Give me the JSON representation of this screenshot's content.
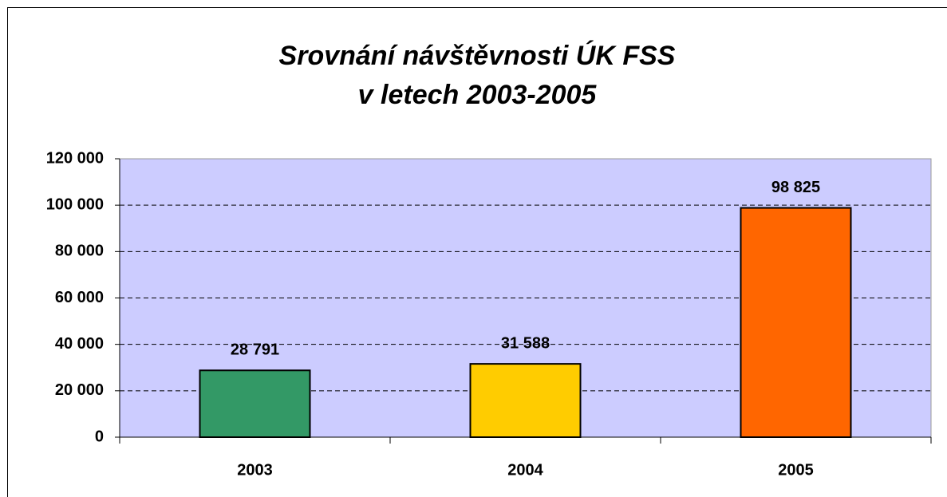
{
  "chart_data": {
    "type": "bar",
    "title": [
      "Srovnání návštěvnosti ÚK FSS",
      "v letech 2003-2005"
    ],
    "categories": [
      "2003",
      "2004",
      "2005"
    ],
    "values": [
      28791,
      31588,
      98825
    ],
    "value_labels": [
      "28 791",
      "31 588",
      "98 825"
    ],
    "colors": [
      "#339966",
      "#ffcc00",
      "#ff6600"
    ],
    "ylim": [
      0,
      120000
    ],
    "yticks": [
      0,
      {
        "value": 20000,
        "label": "20 000"
      },
      {
        "value": 40000,
        "label": "40 000"
      },
      {
        "value": 60000,
        "label": "60 000"
      },
      {
        "value": 80000,
        "label": "80 000"
      },
      {
        "value": 100000,
        "label": "100 000"
      },
      {
        "value": 120000,
        "label": "120 000"
      }
    ],
    "grid": true
  }
}
